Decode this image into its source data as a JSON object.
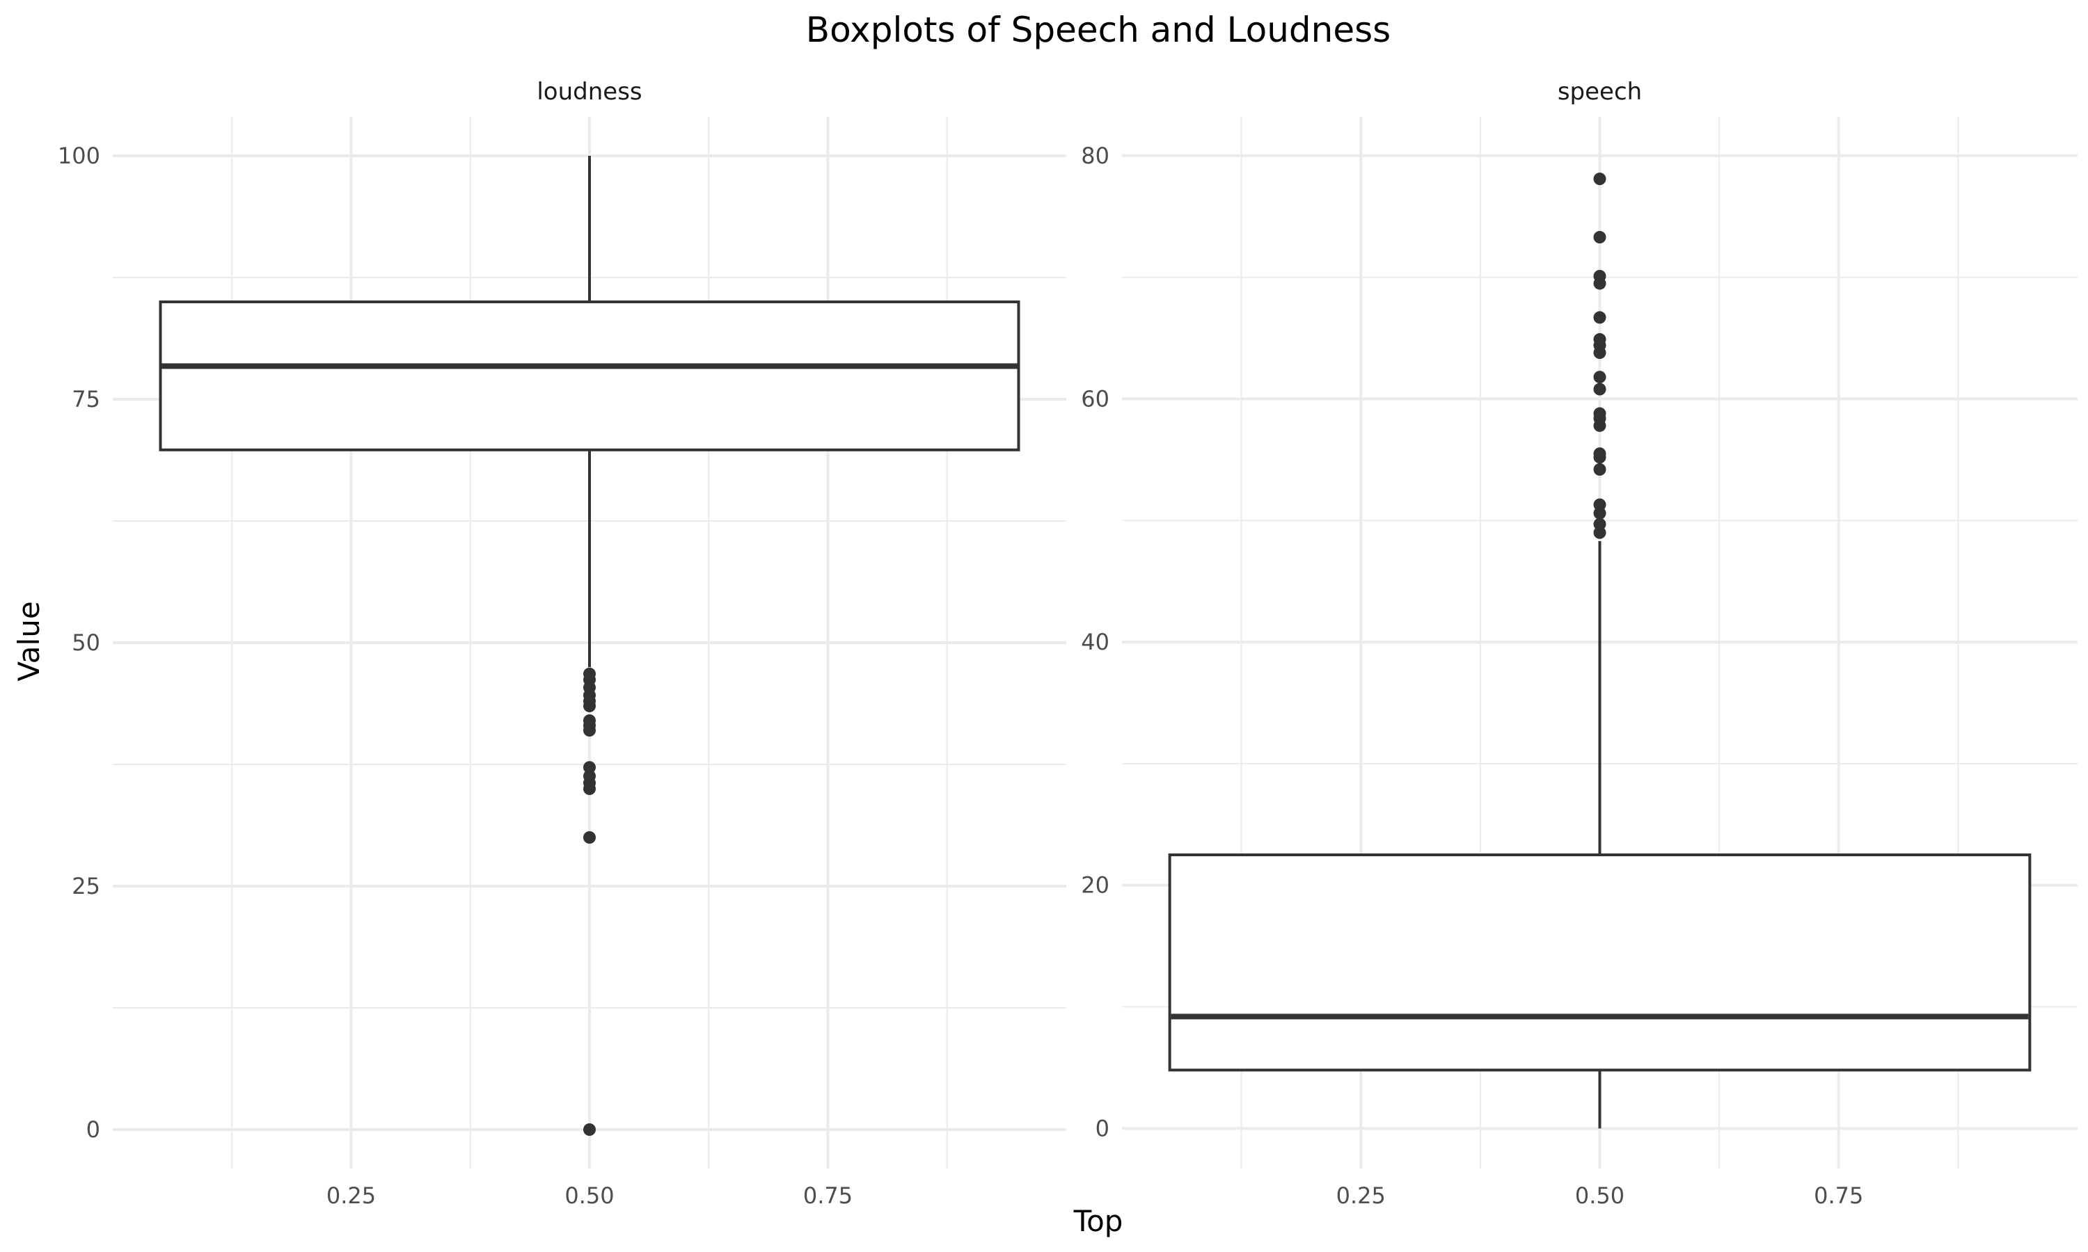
{
  "chart_data": {
    "type": "boxplot",
    "title": "Boxplots of Speech and Loudness",
    "xlabel": "Top",
    "ylabel": "Value",
    "grid": true,
    "legend": "none",
    "colors": {
      "box_stroke": "#333333",
      "grid": "#ebebeb",
      "text": "#4d4d4d"
    },
    "facets": [
      {
        "name": "loudness",
        "xlim": [
          0,
          1
        ],
        "ylim": [
          -4,
          104
        ],
        "x_ticks": [
          0.25,
          0.5,
          0.75
        ],
        "x_tick_labels": [
          "0.25",
          "0.50",
          "0.75"
        ],
        "y_ticks": [
          0,
          25,
          50,
          75,
          100
        ],
        "y_tick_labels": [
          "0",
          "25",
          "50",
          "75",
          "100"
        ],
        "box": {
          "x": 0.5,
          "x_range": [
            0.05,
            0.95
          ],
          "whisker_low": 47.5,
          "q1": 69.8,
          "median": 78.4,
          "q3": 85.0,
          "whisker_high": 100
        },
        "outliers": [
          0,
          30.0,
          35.0,
          35.6,
          36.3,
          37.2,
          41.0,
          41.5,
          42.0,
          43.5,
          44.0,
          44.6,
          45.4,
          46.2,
          46.8
        ]
      },
      {
        "name": "speech",
        "xlim": [
          0,
          1
        ],
        "ylim": [
          -3.3,
          83.2
        ],
        "x_ticks": [
          0.25,
          0.5,
          0.75
        ],
        "x_tick_labels": [
          "0.25",
          "0.50",
          "0.75"
        ],
        "y_ticks": [
          0,
          20,
          40,
          60,
          80
        ],
        "y_tick_labels": [
          "0",
          "20",
          "40",
          "60",
          "80"
        ],
        "box": {
          "x": 0.5,
          "x_range": [
            0.05,
            0.95
          ],
          "whisker_low": 0,
          "q1": 4.8,
          "median": 9.2,
          "q3": 22.5,
          "whisker_high": 48.3
        },
        "outliers": [
          49.0,
          49.7,
          50.6,
          51.3,
          54.2,
          55.2,
          55.5,
          57.8,
          58.4,
          58.8,
          60.8,
          61.8,
          63.8,
          64.4,
          64.9,
          66.7,
          69.5,
          70.1,
          73.3,
          78.1
        ]
      }
    ]
  }
}
